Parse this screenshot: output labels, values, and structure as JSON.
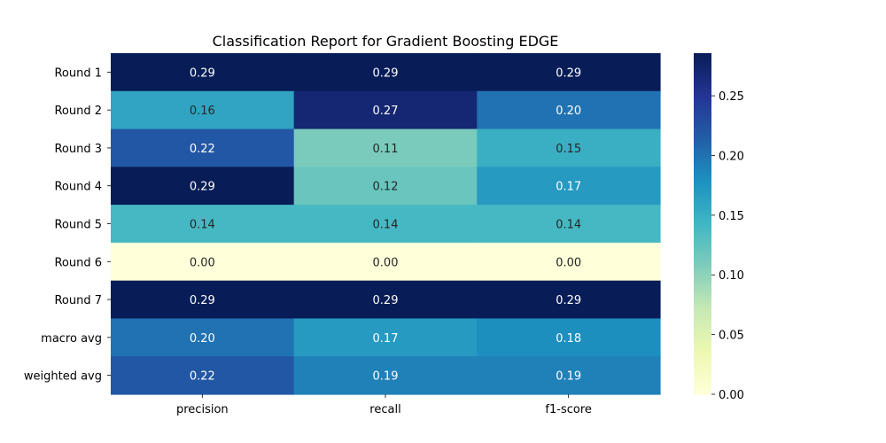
{
  "chart_data": {
    "type": "heatmap",
    "title": "Classification Report for Gradient Boosting EDGE",
    "xlabel": "",
    "ylabel": "",
    "columns": [
      "precision",
      "recall",
      "f1-score"
    ],
    "rows": [
      "Round 1",
      "Round 2",
      "Round 3",
      "Round 4",
      "Round 5",
      "Round 6",
      "Round 7",
      "macro avg",
      "weighted avg"
    ],
    "values": [
      [
        0.29,
        0.29,
        0.29
      ],
      [
        0.16,
        0.27,
        0.2
      ],
      [
        0.22,
        0.11,
        0.15
      ],
      [
        0.29,
        0.12,
        0.17
      ],
      [
        0.14,
        0.14,
        0.14
      ],
      [
        0.0,
        0.0,
        0.0
      ],
      [
        0.29,
        0.29,
        0.29
      ],
      [
        0.2,
        0.17,
        0.18
      ],
      [
        0.22,
        0.19,
        0.19
      ]
    ],
    "value_format": "0.00",
    "colormap": "YlGnBu",
    "vmin": 0.0,
    "vmax": 0.2857,
    "colorbar_ticks": [
      "0.00",
      "0.05",
      "0.10",
      "0.15",
      "0.20",
      "0.25"
    ],
    "colorbar_tick_values": [
      0.0,
      0.05,
      0.1,
      0.15,
      0.2,
      0.25
    ],
    "grid": false
  }
}
